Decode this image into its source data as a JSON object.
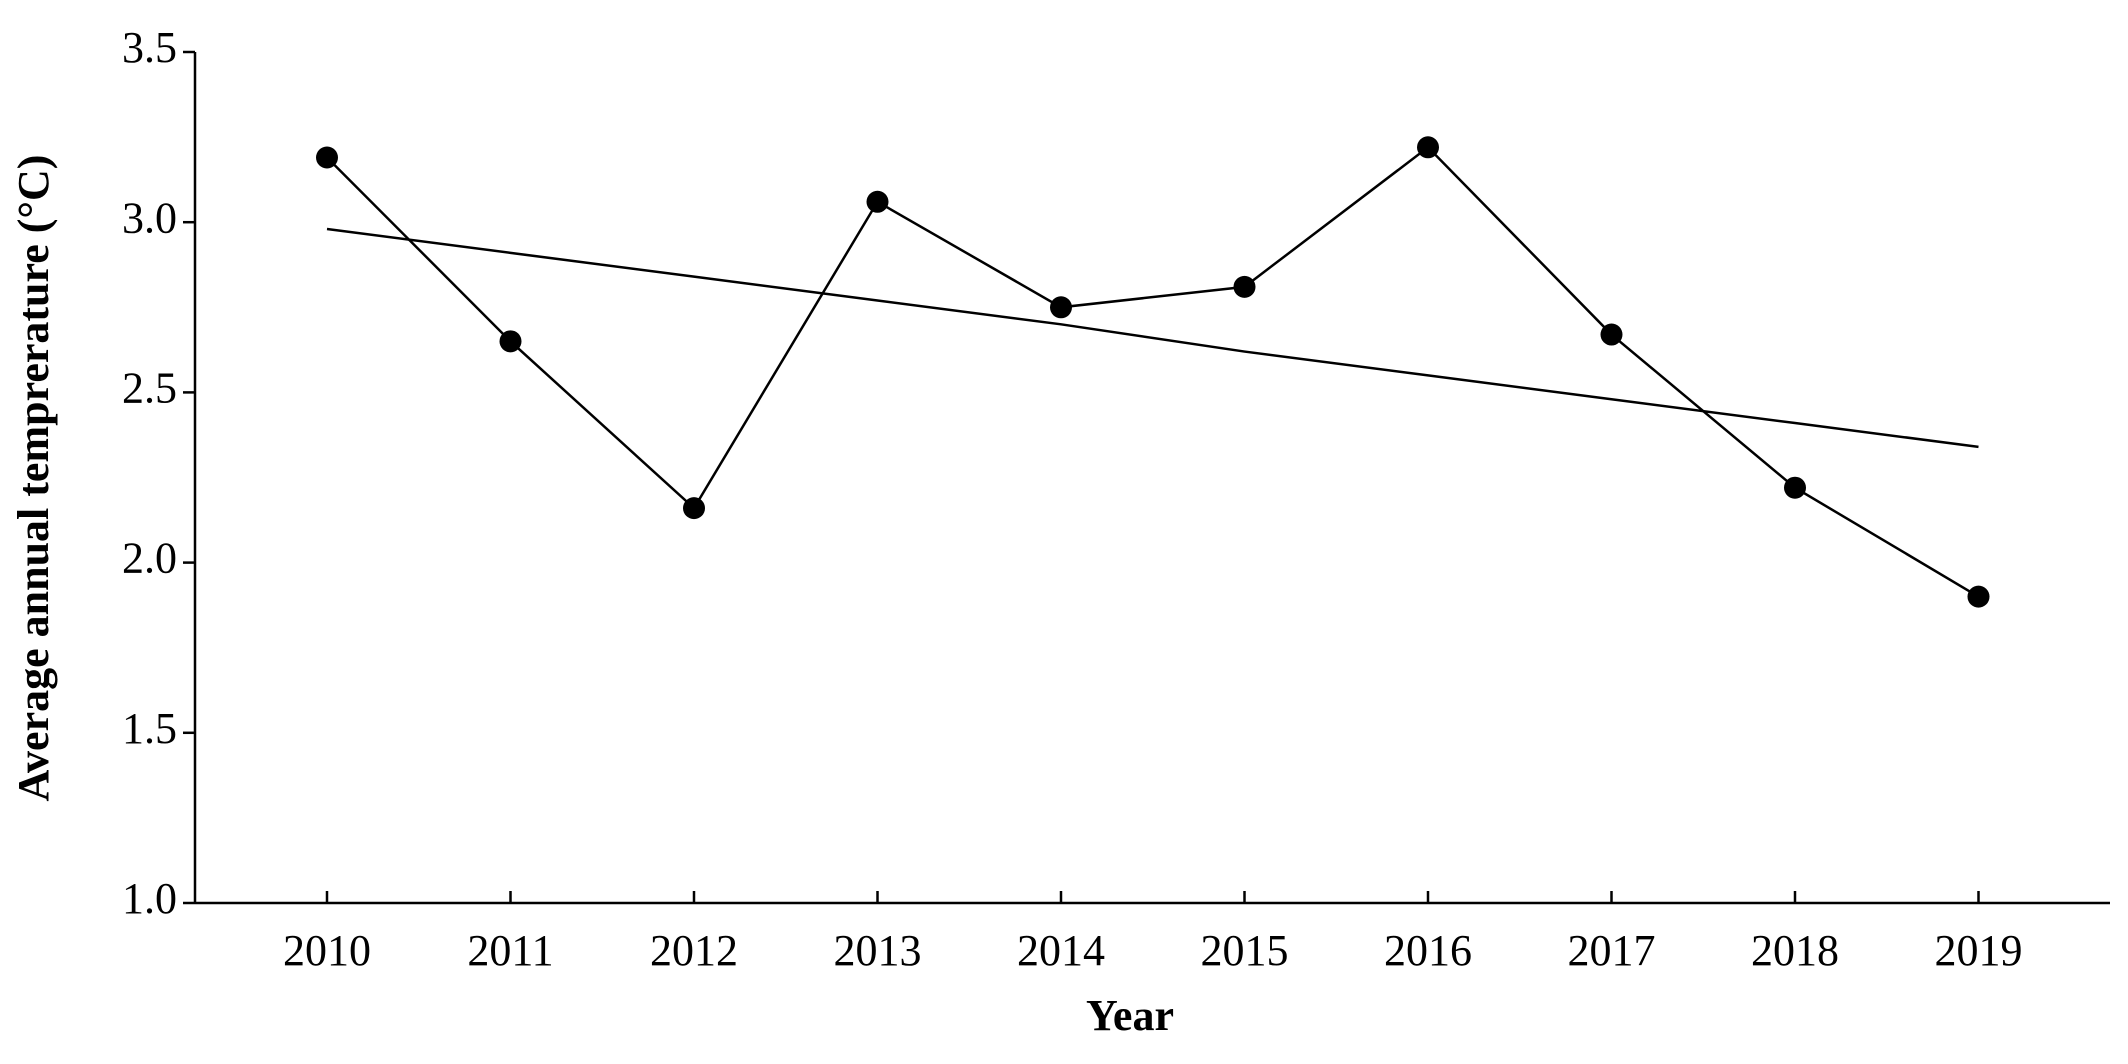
{
  "chart_data": {
    "type": "line",
    "x_label": "Year",
    "y_label": "Average annual temprerature (°C)",
    "categories": [
      "2010",
      "2011",
      "2012",
      "2013",
      "2014",
      "2015",
      "2016",
      "2017",
      "2018",
      "2019"
    ],
    "series": [
      {
        "color": "#000000",
        "markers": true,
        "values": [
          3.19,
          2.65,
          2.16,
          3.06,
          2.75,
          2.81,
          3.22,
          2.67,
          2.22,
          1.9
        ]
      },
      {
        "color": "#000000",
        "markers": false,
        "values": [
          2.98,
          2.91,
          2.84,
          2.77,
          2.7,
          2.62,
          2.55,
          2.48,
          2.41,
          2.34
        ]
      }
    ],
    "ylim": [
      1.0,
      3.5
    ],
    "yticks": [
      {
        "value": 1.0,
        "label": "1.0"
      },
      1.5,
      {
        "value": 2.0,
        "label": "2.0"
      },
      2.5,
      {
        "value": 3.0,
        "label": "3.0"
      },
      3.5
    ]
  }
}
